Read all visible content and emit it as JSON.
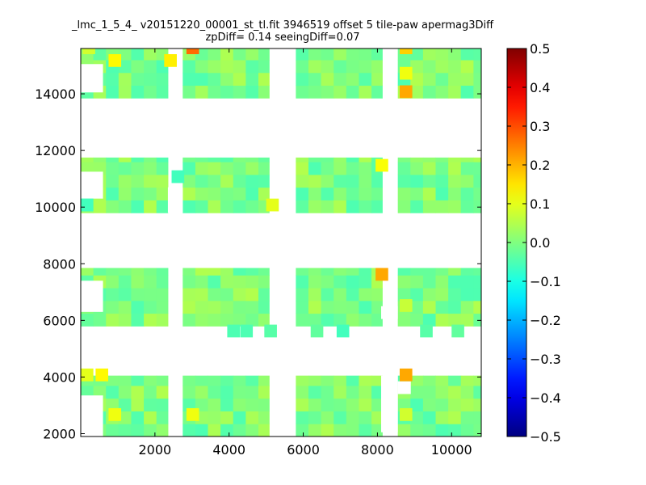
{
  "title_line_1": "_lmc_1_5_4_ v20151220_00001_st_tl.fit 3946519 offset 5 tile-paw apermag3Diff",
  "title_line_2": "zpDiff= 0.14 seeingDiff=0.07",
  "chart_data": {
    "type": "heatmap",
    "title": "_lmc_1_5_4_ v20151220_00001_st_tl.fit 3946519 offset 5 tile-paw apermag3Diff zpDiff= 0.14 seeingDiff=0.07",
    "xlabel": "",
    "ylabel": "",
    "xlim": [
      0,
      10800
    ],
    "ylim": [
      1900,
      15600
    ],
    "x_ticks": [
      2000,
      4000,
      6000,
      8000,
      10000
    ],
    "y_ticks": [
      2000,
      4000,
      6000,
      8000,
      10000,
      12000,
      14000
    ],
    "colormap": "jet",
    "clim": [
      -0.5,
      0.5
    ],
    "colorbar_ticks": [
      0.5,
      0.4,
      0.3,
      0.2,
      0.1,
      0.0,
      -0.1,
      -0.2,
      -0.3,
      -0.4,
      -0.5
    ],
    "colorbar_labels": [
      "0.5",
      "0.4",
      "0.3",
      "0.2",
      "0.1",
      "0.0",
      "−0.1",
      "−0.2",
      "−0.3",
      "−0.4",
      "−0.5"
    ],
    "cell_size": [
      340,
      450
    ],
    "columns": [
      {
        "x0": 0,
        "x1": 2350
      },
      {
        "x0": 2750,
        "x1": 5080
      },
      {
        "x0": 5800,
        "x1": 8130
      },
      {
        "x0": 8550,
        "x1": 10800
      }
    ],
    "rows": [
      {
        "y0": 1900,
        "y1": 4050
      },
      {
        "y0": 5800,
        "y1": 7850
      },
      {
        "y0": 9800,
        "y1": 11750
      },
      {
        "y0": 13850,
        "y1": 15600
      }
    ],
    "typical_values": {
      "low": -0.05,
      "mid": 0.0,
      "high": 0.05
    },
    "cells": [
      {
        "x": 50,
        "y": 15400,
        "value": 0.08
      },
      {
        "x": 750,
        "y": 14950,
        "value": 0.13
      },
      {
        "x": 2250,
        "y": 14950,
        "value": 0.14
      },
      {
        "x": 2850,
        "y": 15400,
        "value": 0.27
      },
      {
        "x": 8600,
        "y": 15400,
        "value": 0.17
      },
      {
        "x": 8600,
        "y": 14500,
        "value": 0.11
      },
      {
        "x": 8600,
        "y": 13850,
        "value": 0.21
      },
      {
        "x": 7950,
        "y": 11250,
        "value": 0.12
      },
      {
        "x": 2450,
        "y": 10850,
        "value": -0.06
      },
      {
        "x": 5000,
        "y": 9850,
        "value": 0.1
      },
      {
        "x": 0,
        "y": 9850,
        "value": -0.06
      },
      {
        "x": 7950,
        "y": 7400,
        "value": 0.21
      },
      {
        "x": 8600,
        "y": 6300,
        "value": 0.07
      },
      {
        "x": 0,
        "y": 3850,
        "value": 0.1
      },
      {
        "x": 400,
        "y": 3850,
        "value": 0.13
      },
      {
        "x": 8600,
        "y": 3850,
        "value": 0.21
      },
      {
        "x": 750,
        "y": 2450,
        "value": 0.11
      },
      {
        "x": 2850,
        "y": 2450,
        "value": 0.11
      },
      {
        "x": 8600,
        "y": 2450,
        "value": 0.08
      },
      {
        "x": 3950,
        "y": 5400,
        "value": -0.05
      },
      {
        "x": 4300,
        "y": 5400,
        "value": -0.05
      },
      {
        "x": 4950,
        "y": 5400,
        "value": -0.04
      },
      {
        "x": 6200,
        "y": 5400,
        "value": -0.03
      },
      {
        "x": 6900,
        "y": 5400,
        "value": -0.06
      },
      {
        "x": 9150,
        "y": 5400,
        "value": -0.04
      },
      {
        "x": 10000,
        "y": 5400,
        "value": -0.03
      }
    ]
  }
}
